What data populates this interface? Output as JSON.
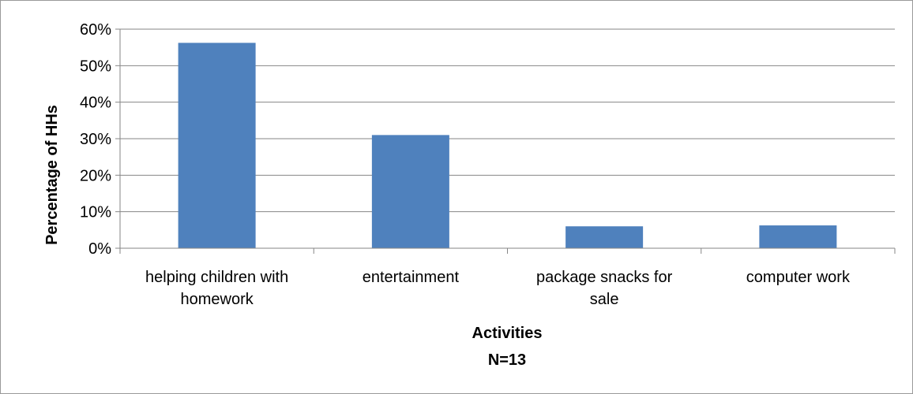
{
  "chart_data": {
    "type": "bar",
    "categories": [
      [
        "helping children with",
        "homework"
      ],
      [
        "entertainment"
      ],
      [
        "package snacks for",
        "sale"
      ],
      [
        "computer work"
      ]
    ],
    "values": [
      56.25,
      31,
      6,
      6.25
    ],
    "ylim": [
      0,
      60
    ],
    "yticks": [
      0,
      10,
      20,
      30,
      40,
      50,
      60
    ],
    "ytick_labels": [
      "0%",
      "10%",
      "20%",
      "30%",
      "40%",
      "50%",
      "60%"
    ],
    "ylabel": "Percentage of HHs",
    "xlabel": "Activities",
    "xlabel_sub": "N=13",
    "bar_color": "#4f81bd",
    "gridlines": true,
    "legend": false
  }
}
